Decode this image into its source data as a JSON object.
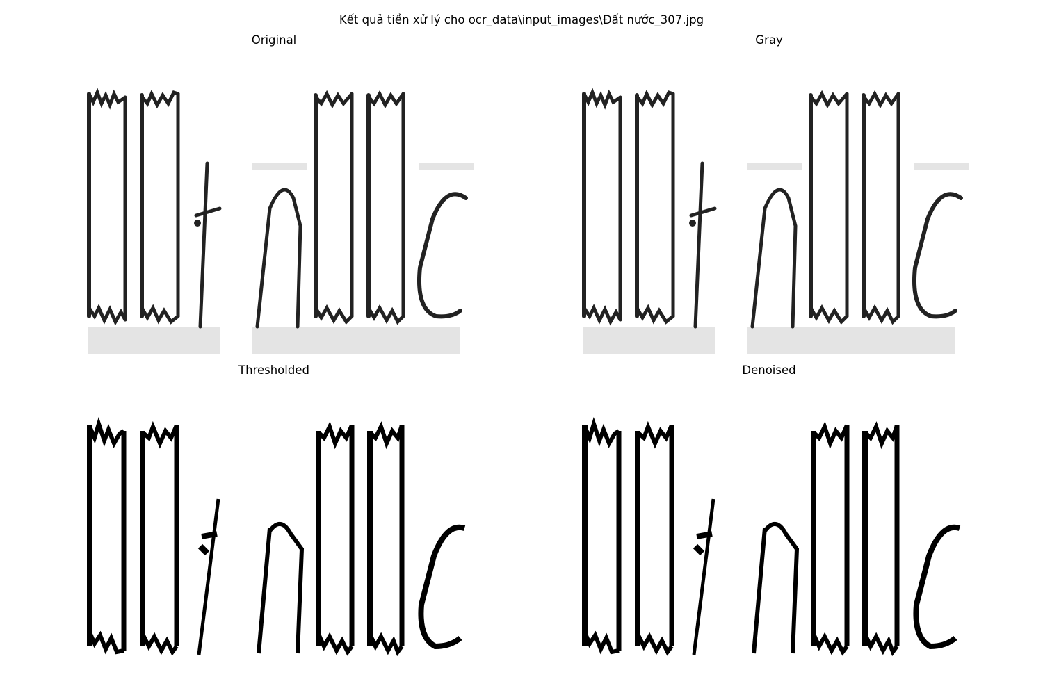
{
  "figure": {
    "suptitle": "Kết quả tiền xử lý cho ocr_data\\input_images\\Đất nước_307.jpg",
    "panels": [
      {
        "title": "Original",
        "style": "gray"
      },
      {
        "title": "Gray",
        "style": "gray"
      },
      {
        "title": "Thresholded",
        "style": "binary"
      },
      {
        "title": "Denoised",
        "style": "binary"
      }
    ]
  }
}
